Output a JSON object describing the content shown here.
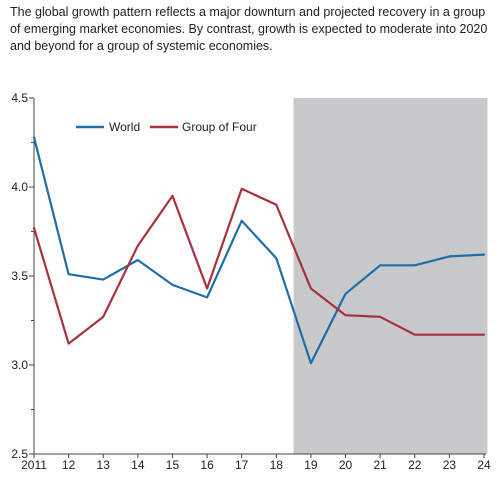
{
  "caption": "The global growth pattern reflects a major downturn and projected recovery in a group of emerging market economies. By contrast, growth is expected to moderate into 2020 and beyond for a group of systemic economies.",
  "colors": {
    "world": "#1f6ea8",
    "group_of_four": "#a8313d",
    "projection_shade": "#c8c9cb",
    "axis": "#444444"
  },
  "chart_data": {
    "type": "line",
    "x": [
      2011,
      2012,
      2013,
      2014,
      2015,
      2016,
      2017,
      2018,
      2019,
      2020,
      2021,
      2022,
      2023,
      2024
    ],
    "x_tick_labels": [
      "2011",
      "12",
      "13",
      "14",
      "15",
      "16",
      "17",
      "18",
      "19",
      "20",
      "21",
      "22",
      "23",
      "24"
    ],
    "ylim": [
      2.5,
      4.5
    ],
    "y_ticks": [
      2.5,
      3.0,
      3.5,
      4.0,
      4.5
    ],
    "y_tick_labels": [
      "2.5",
      "3.0",
      "3.5",
      "4.0",
      "4.5"
    ],
    "y_minor_ticks": [
      2.75,
      3.25,
      3.75,
      4.25
    ],
    "shaded_region": {
      "from": 2018.5,
      "to": 2024.1
    },
    "legend": {
      "placement": "top-left"
    },
    "grid": false,
    "series": [
      {
        "name": "World",
        "values": [
          4.28,
          3.51,
          3.48,
          3.59,
          3.45,
          3.38,
          3.81,
          3.6,
          3.01,
          3.4,
          3.56,
          3.56,
          3.61,
          3.62
        ]
      },
      {
        "name": "Group of Four",
        "values": [
          3.77,
          3.12,
          3.27,
          3.67,
          3.95,
          3.43,
          3.99,
          3.9,
          3.43,
          3.28,
          3.27,
          3.17,
          3.17,
          3.17
        ]
      }
    ]
  }
}
